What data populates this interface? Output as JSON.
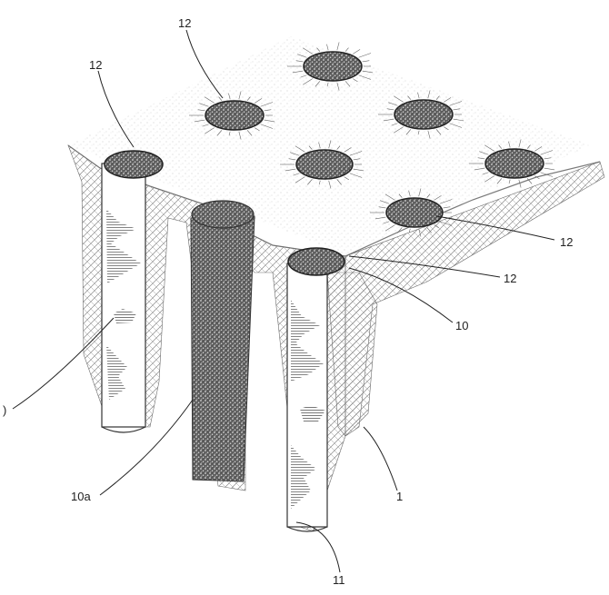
{
  "figure": {
    "labels": {
      "twelve_a": "12",
      "twelve_b": "12",
      "twelve_c": "12",
      "twelve_d": "12",
      "ten": "10",
      "ten_a": "10a",
      "one": "1",
      "eleven": "11",
      "left_cut": ")"
    }
  },
  "colors": {
    "ink": "#222222",
    "stone": "#444444",
    "soil_light": "#bdbdbd"
  }
}
